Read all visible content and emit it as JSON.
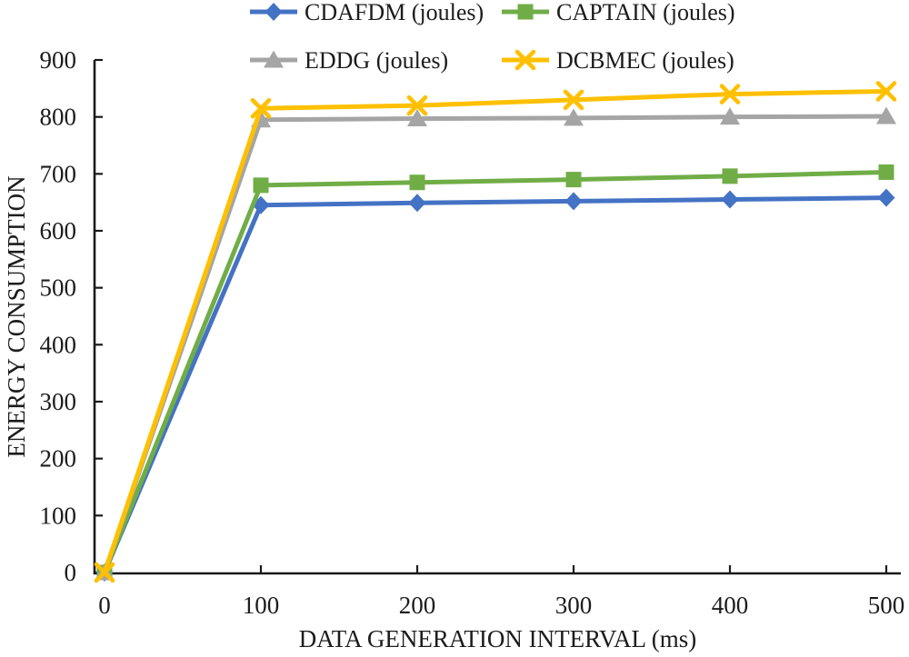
{
  "figure": {
    "kind": "static-research-figure",
    "background": "#ffffff"
  },
  "chart_data": {
    "type": "line",
    "title": "",
    "xlabel": "DATA GENERATION INTERVAL (ms)",
    "ylabel": "ENERGY CONSUMPTION",
    "x": [
      0,
      100,
      200,
      300,
      400,
      500
    ],
    "x_tick_labels": [
      "0",
      "100",
      "200",
      "300",
      "400",
      "500"
    ],
    "y_ticks": [
      0,
      100,
      200,
      300,
      400,
      500,
      600,
      700,
      800,
      900
    ],
    "xlim": [
      0,
      500
    ],
    "ylim": [
      0,
      900
    ],
    "grid": false,
    "legend_position": "top",
    "axis_color": "#1a1a1a",
    "text_color": "#1c1c1c",
    "series": [
      {
        "name": "CDAFDM (joules)",
        "key": "cdafdm",
        "color": "#4472C4",
        "marker": "diamond",
        "values": [
          0,
          645,
          649,
          652,
          655,
          658
        ]
      },
      {
        "name": "CAPTAIN (joules)",
        "key": "captain",
        "color": "#70AD47",
        "marker": "square",
        "values": [
          0,
          680,
          685,
          690,
          696,
          703
        ]
      },
      {
        "name": "EDDG (joules)",
        "key": "eddg",
        "color": "#A5A5A5",
        "marker": "triangle",
        "values": [
          0,
          795,
          797,
          798,
          800,
          801
        ]
      },
      {
        "name": "DCBMEC (joules)",
        "key": "dcbmec",
        "color": "#FFC000",
        "marker": "x",
        "values": [
          0,
          815,
          820,
          830,
          840,
          845
        ]
      }
    ]
  }
}
